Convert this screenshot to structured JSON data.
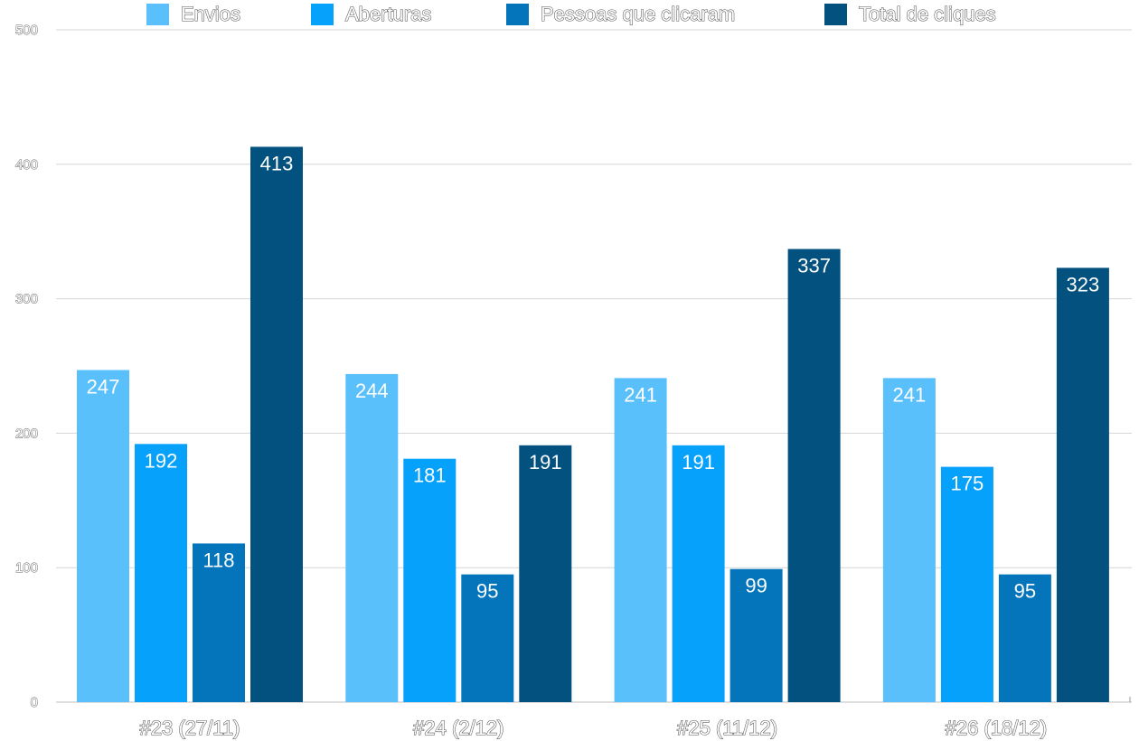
{
  "chart_data": {
    "type": "bar",
    "categories": [
      "#23 (27/11)",
      "#24 (2/12)",
      "#25 (11/12)",
      "#26 (18/12)"
    ],
    "series": [
      {
        "name": "Envios",
        "color": "#5ac0fc",
        "values": [
          247,
          244,
          241,
          241
        ]
      },
      {
        "name": "Aberturas",
        "color": "#05a1fb",
        "values": [
          192,
          181,
          191,
          175
        ]
      },
      {
        "name": "Pessoas que clicaram",
        "color": "#0475bb",
        "values": [
          118,
          95,
          99,
          95
        ]
      },
      {
        "name": "Total de cliques",
        "color": "#02517f",
        "values": [
          413,
          191,
          337,
          323
        ]
      }
    ],
    "ylim": [
      0,
      500
    ],
    "yticks": [
      0,
      100,
      200,
      300,
      400,
      500
    ],
    "grid": true,
    "legend": "top",
    "data_labels": true
  }
}
